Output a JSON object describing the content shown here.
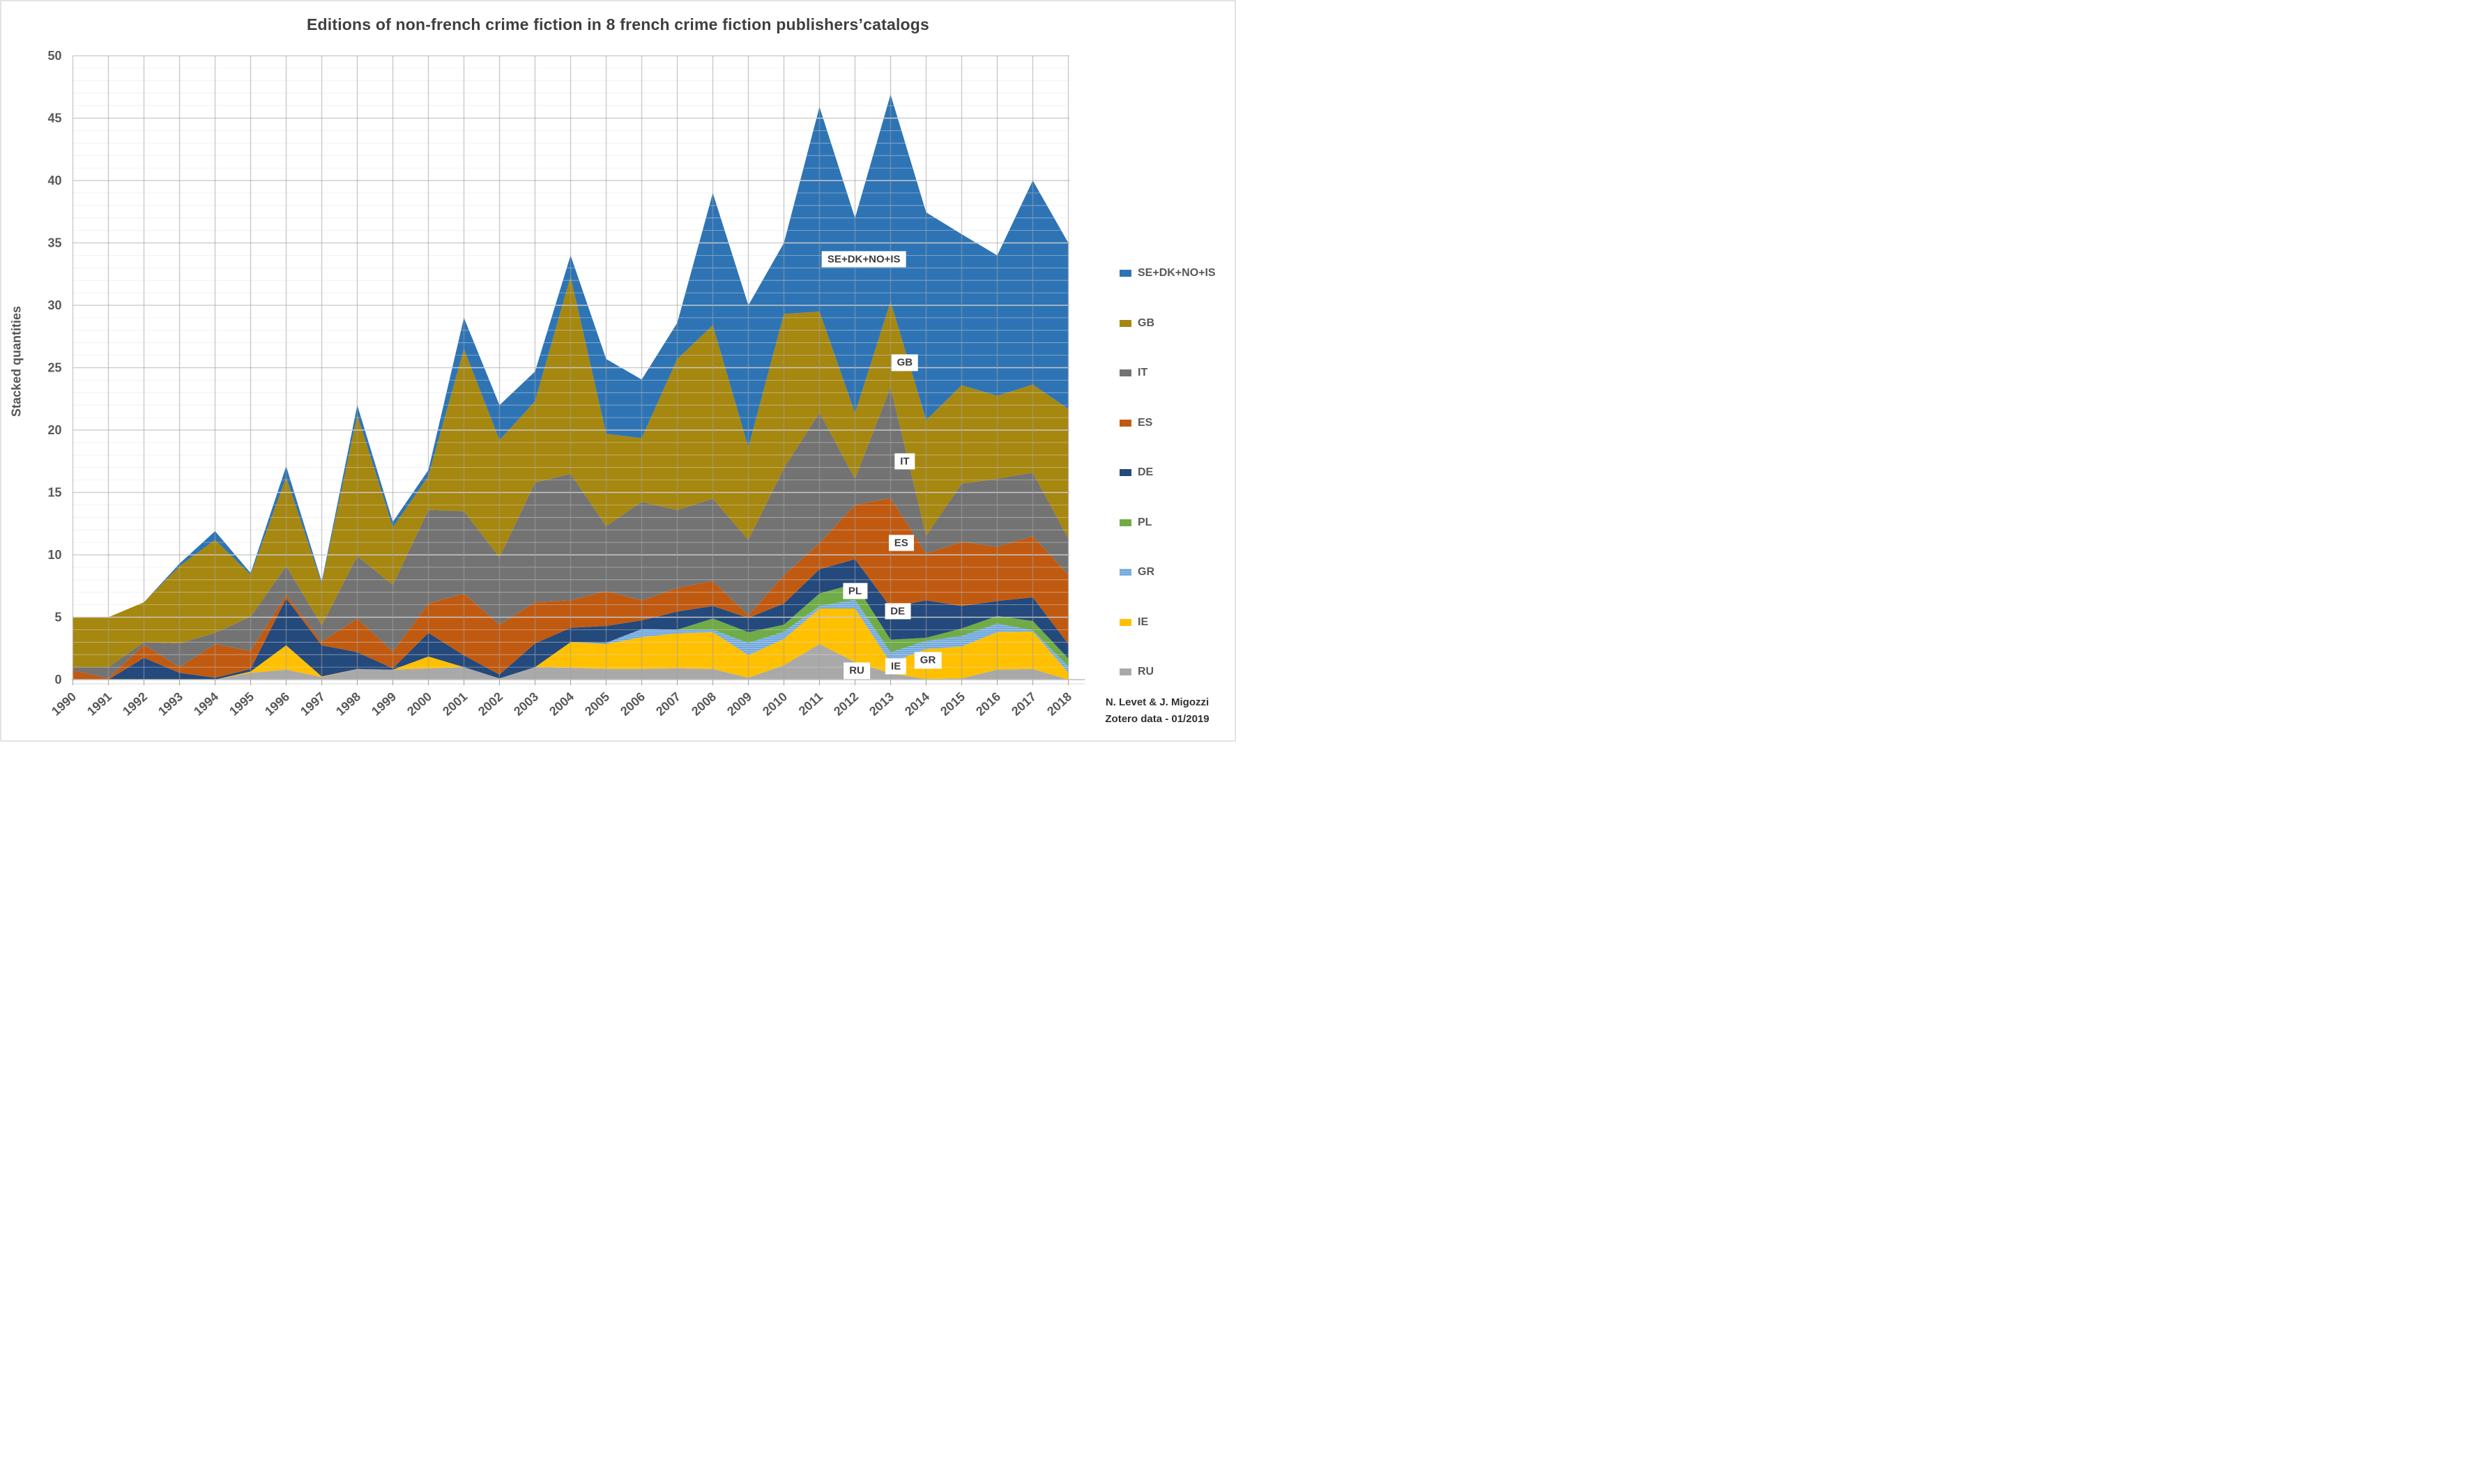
{
  "title": "Editions of non-french crime fiction in 8 french crime fiction publishers’catalogs",
  "y_axis": {
    "title": "Stacked quantities",
    "ticks": [
      0,
      5,
      10,
      15,
      20,
      25,
      30,
      35,
      40,
      45,
      50
    ]
  },
  "x_axis": {
    "years": [
      1990,
      1991,
      1992,
      1993,
      1994,
      1995,
      1996,
      1997,
      1998,
      1999,
      2000,
      2001,
      2002,
      2003,
      2004,
      2005,
      2006,
      2007,
      2008,
      2009,
      2010,
      2011,
      2012,
      2013,
      2014,
      2015,
      2016,
      2017,
      2018
    ]
  },
  "legend": {
    "items": [
      {
        "label": "SE+DK+NO+IS",
        "color": "#2e74b5"
      },
      {
        "label": "GB",
        "color": "#a6870f"
      },
      {
        "label": "IT",
        "color": "#737373"
      },
      {
        "label": "ES",
        "color": "#c05a11"
      },
      {
        "label": "DE",
        "color": "#24497c"
      },
      {
        "label": "PL",
        "color": "#6fac46"
      },
      {
        "label": "GR",
        "color": "#6ca6dd",
        "striped": true
      },
      {
        "label": "IE",
        "color": "#ffc000"
      },
      {
        "label": "RU",
        "color": "#a9a9a9"
      }
    ]
  },
  "attribution": {
    "line1": "N. Levet & J. Migozzi",
    "line2": "Zotero data - 01/2019"
  },
  "chart_data": {
    "type": "area",
    "stacked": true,
    "title": "Editions of non-french crime fiction in 8 french crime fiction publishers’catalogs",
    "xlabel": "",
    "ylabel": "Stacked quantities",
    "ylim": [
      0,
      50
    ],
    "grid": {
      "h_major_step": 5,
      "h_minor_step": 1,
      "vertical_per_year": true
    },
    "legend_position": "right",
    "x": [
      1990,
      1991,
      1992,
      1993,
      1994,
      1995,
      1996,
      1997,
      1998,
      1999,
      2000,
      2001,
      2002,
      2003,
      2004,
      2005,
      2006,
      2007,
      2008,
      2009,
      2010,
      2011,
      2012,
      2013,
      2014,
      2015,
      2016,
      2017,
      2018
    ],
    "series": [
      {
        "name": "RU",
        "color": "#a9a9a9",
        "values": [
          0,
          0,
          0,
          0,
          0,
          0.55,
          0.8,
          0.2,
          0.85,
          0.8,
          0.9,
          1.0,
          0.1,
          1.0,
          0.95,
          0.85,
          0.85,
          0.9,
          0.85,
          0.15,
          1.15,
          2.85,
          1.4,
          0.5,
          0.05,
          0.1,
          0.8,
          0.85,
          0
        ]
      },
      {
        "name": "IE",
        "color": "#ffc000",
        "values": [
          0,
          0,
          0,
          0,
          0,
          0.1,
          1.95,
          0.05,
          0,
          0,
          0.95,
          0,
          0,
          0,
          2.05,
          2.0,
          2.55,
          2.8,
          2.95,
          1.8,
          2.1,
          2.85,
          4.3,
          0.85,
          2.4,
          2.55,
          3.0,
          3.0,
          0.55
        ]
      },
      {
        "name": "GR",
        "color": "#6ca6dd",
        "pattern": "stripes",
        "values": [
          0,
          0,
          0,
          0,
          0,
          0,
          0,
          0,
          0,
          0,
          0,
          0,
          0,
          0,
          0,
          0.1,
          0.65,
          0.3,
          0.2,
          1.0,
          0.6,
          0.2,
          0.7,
          0.85,
          0.65,
          0.85,
          0.7,
          0.1,
          0.5
        ]
      },
      {
        "name": "PL",
        "color": "#6fac46",
        "values": [
          0,
          0,
          0,
          0,
          0,
          0,
          0,
          0,
          0,
          0,
          0,
          0,
          0,
          0,
          0,
          0,
          0,
          0,
          0.9,
          0.85,
          0.55,
          1.0,
          1.3,
          1.0,
          0.25,
          0.6,
          0.6,
          0.75,
          0.65
        ]
      },
      {
        "name": "DE",
        "color": "#24497c",
        "values": [
          0,
          0,
          1.75,
          0.55,
          0.15,
          0.2,
          3.75,
          2.5,
          1.35,
          0.1,
          1.9,
          0.95,
          0.3,
          1.9,
          1.15,
          1.35,
          0.7,
          1.45,
          1.0,
          1.15,
          1.7,
          1.95,
          1.95,
          2.6,
          3.0,
          1.8,
          1.2,
          1.9,
          1.15
        ]
      },
      {
        "name": "ES",
        "color": "#c05a11",
        "values": [
          0.75,
          0.1,
          1.05,
          0.45,
          2.7,
          1.45,
          0.3,
          0.3,
          2.7,
          1.35,
          2.35,
          4.95,
          4.0,
          3.3,
          2.2,
          2.8,
          1.6,
          1.9,
          2.0,
          0.2,
          2.25,
          2.1,
          4.35,
          8.75,
          3.75,
          5.15,
          4.35,
          4.9,
          5.55
        ]
      },
      {
        "name": "IT",
        "color": "#737373",
        "values": [
          0.25,
          0.9,
          0.2,
          1.9,
          0.9,
          2.75,
          2.3,
          1.3,
          5.0,
          5.35,
          7.5,
          6.6,
          5.4,
          9.6,
          10.15,
          5.2,
          7.9,
          6.25,
          6.6,
          6.05,
          8.6,
          10.45,
          2.1,
          8.9,
          1.45,
          4.65,
          5.45,
          5.1,
          2.9
        ]
      },
      {
        "name": "GB",
        "color": "#a6870f",
        "values": [
          4.0,
          4.0,
          3.2,
          6.2,
          7.45,
          3.35,
          7.1,
          3.35,
          11.3,
          4.6,
          2.7,
          13.0,
          9.4,
          6.5,
          15.8,
          7.4,
          5.1,
          12.1,
          13.9,
          7.4,
          12.35,
          8.1,
          5.25,
          6.85,
          9.25,
          7.9,
          6.65,
          7.05,
          10.4
        ]
      },
      {
        "name": "SE+DK+NO+IS",
        "color": "#2e74b5",
        "values": [
          0,
          0,
          0,
          0.2,
          0.7,
          0.15,
          0.9,
          0.15,
          0.8,
          0.45,
          0.5,
          2.5,
          2.8,
          2.4,
          1.7,
          6.0,
          4.7,
          2.9,
          10.6,
          11.4,
          5.7,
          16.4,
          15.65,
          16.6,
          16.65,
          12.1,
          11.25,
          16.35,
          13.3
        ]
      }
    ],
    "inner_labels": [
      {
        "text": "SE+DK+NO+IS",
        "year": 2012.25,
        "value": 33.7
      },
      {
        "text": "GB",
        "year": 2013.4,
        "value": 25.4
      },
      {
        "text": "IT",
        "year": 2013.4,
        "value": 17.5
      },
      {
        "text": "ES",
        "year": 2013.3,
        "value": 10.95
      },
      {
        "text": "DE",
        "year": 2013.2,
        "value": 5.5
      },
      {
        "text": "PL",
        "year": 2012.0,
        "value": 7.1
      },
      {
        "text": "GR",
        "year": 2014.05,
        "value": 1.55
      },
      {
        "text": "IE",
        "year": 2013.15,
        "value": 1.05
      },
      {
        "text": "RU",
        "year": 2012.05,
        "value": 0.7
      }
    ]
  }
}
